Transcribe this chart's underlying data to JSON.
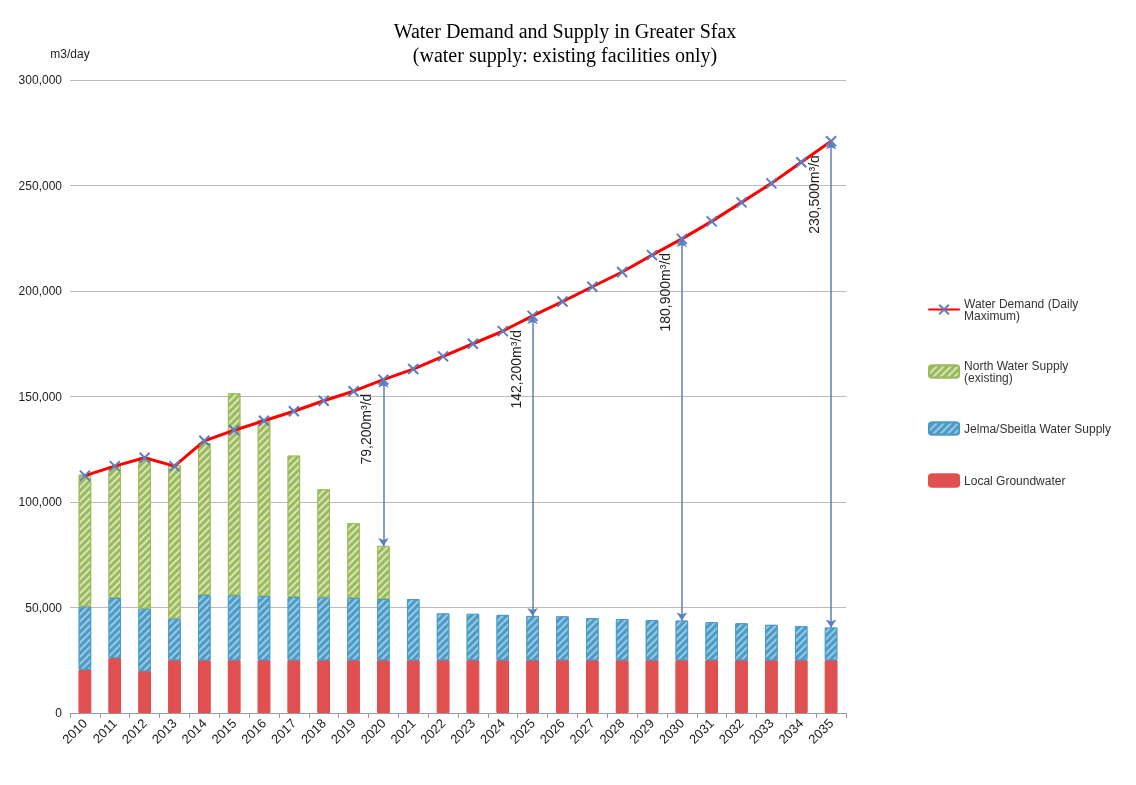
{
  "chart_data": {
    "type": "bar",
    "title": "Water Demand and Supply in Greater Sfax",
    "subtitle": "(water supply: existing facilities only)",
    "ylabel": "m3/day",
    "categories": [
      "2010",
      "2011",
      "2012",
      "2013",
      "2014",
      "2015",
      "2016",
      "2017",
      "2018",
      "2019",
      "2020",
      "2021",
      "2022",
      "2023",
      "2024",
      "2025",
      "2026",
      "2027",
      "2028",
      "2029",
      "2030",
      "2031",
      "2032",
      "2033",
      "2034",
      "2035"
    ],
    "stacked": true,
    "ylim": [
      0,
      300000
    ],
    "yticks": [
      {
        "value": 0,
        "label": "0"
      },
      {
        "value": 50000,
        "label": "50,000"
      },
      {
        "value": 100000,
        "label": "100,000"
      },
      {
        "value": 150000,
        "label": "150,000"
      },
      {
        "value": 200000,
        "label": "200,000"
      },
      {
        "value": 250000,
        "label": "250,000"
      },
      {
        "value": 300000,
        "label": "300,000"
      }
    ],
    "grid": "y",
    "legend": "right",
    "marker": "cross",
    "series": [
      {
        "name": "Local Groundwater",
        "color": "#e05050",
        "values": [
          20500,
          26000,
          19800,
          25000,
          25000,
          25000,
          25000,
          25000,
          25000,
          25000,
          25000,
          25000,
          25000,
          25000,
          25000,
          25000,
          25000,
          25000,
          25000,
          25000,
          25000,
          25000,
          25000,
          25000,
          25000,
          25000
        ]
      },
      {
        "name": "Jelma/Sbeitla Water Supply",
        "color": "#4a9cc8",
        "values": [
          30000,
          28500,
          29700,
          19800,
          31000,
          30800,
          30500,
          30000,
          29800,
          29500,
          29000,
          29000,
          22200,
          22000,
          21500,
          21000,
          20800,
          20000,
          19500,
          19000,
          18800,
          18000,
          17500,
          16800,
          16200,
          15500
        ]
      },
      {
        "name": "North Water Supply (existing)",
        "color": "#9bbb59",
        "values": [
          62500,
          62500,
          71500,
          72700,
          72000,
          95700,
          83500,
          67000,
          51200,
          35500,
          25200,
          null,
          null,
          null,
          null,
          null,
          null,
          null,
          null,
          null,
          null,
          null,
          null,
          null,
          null,
          null
        ]
      },
      {
        "name": "Water Demand (Daily Maximum)",
        "type": "line",
        "color": "#ff0000",
        "values": [
          112500,
          117000,
          121000,
          117000,
          129000,
          134000,
          138500,
          143000,
          148000,
          152500,
          158000,
          163000,
          169000,
          175000,
          181000,
          188200,
          195000,
          202000,
          209000,
          217000,
          224700,
          233000,
          242000,
          251000,
          261000,
          271000
        ]
      }
    ],
    "annotations": [
      {
        "text": "79,200m³/d",
        "x": "2020",
        "y": 158000
      },
      {
        "text": "142,200m³/d",
        "x": "2025",
        "y": 188200
      },
      {
        "text": "180,900m³/d",
        "x": "2030",
        "y": 224700
      },
      {
        "text": "230,500m³/d",
        "x": "2035",
        "y": 271000
      }
    ]
  }
}
